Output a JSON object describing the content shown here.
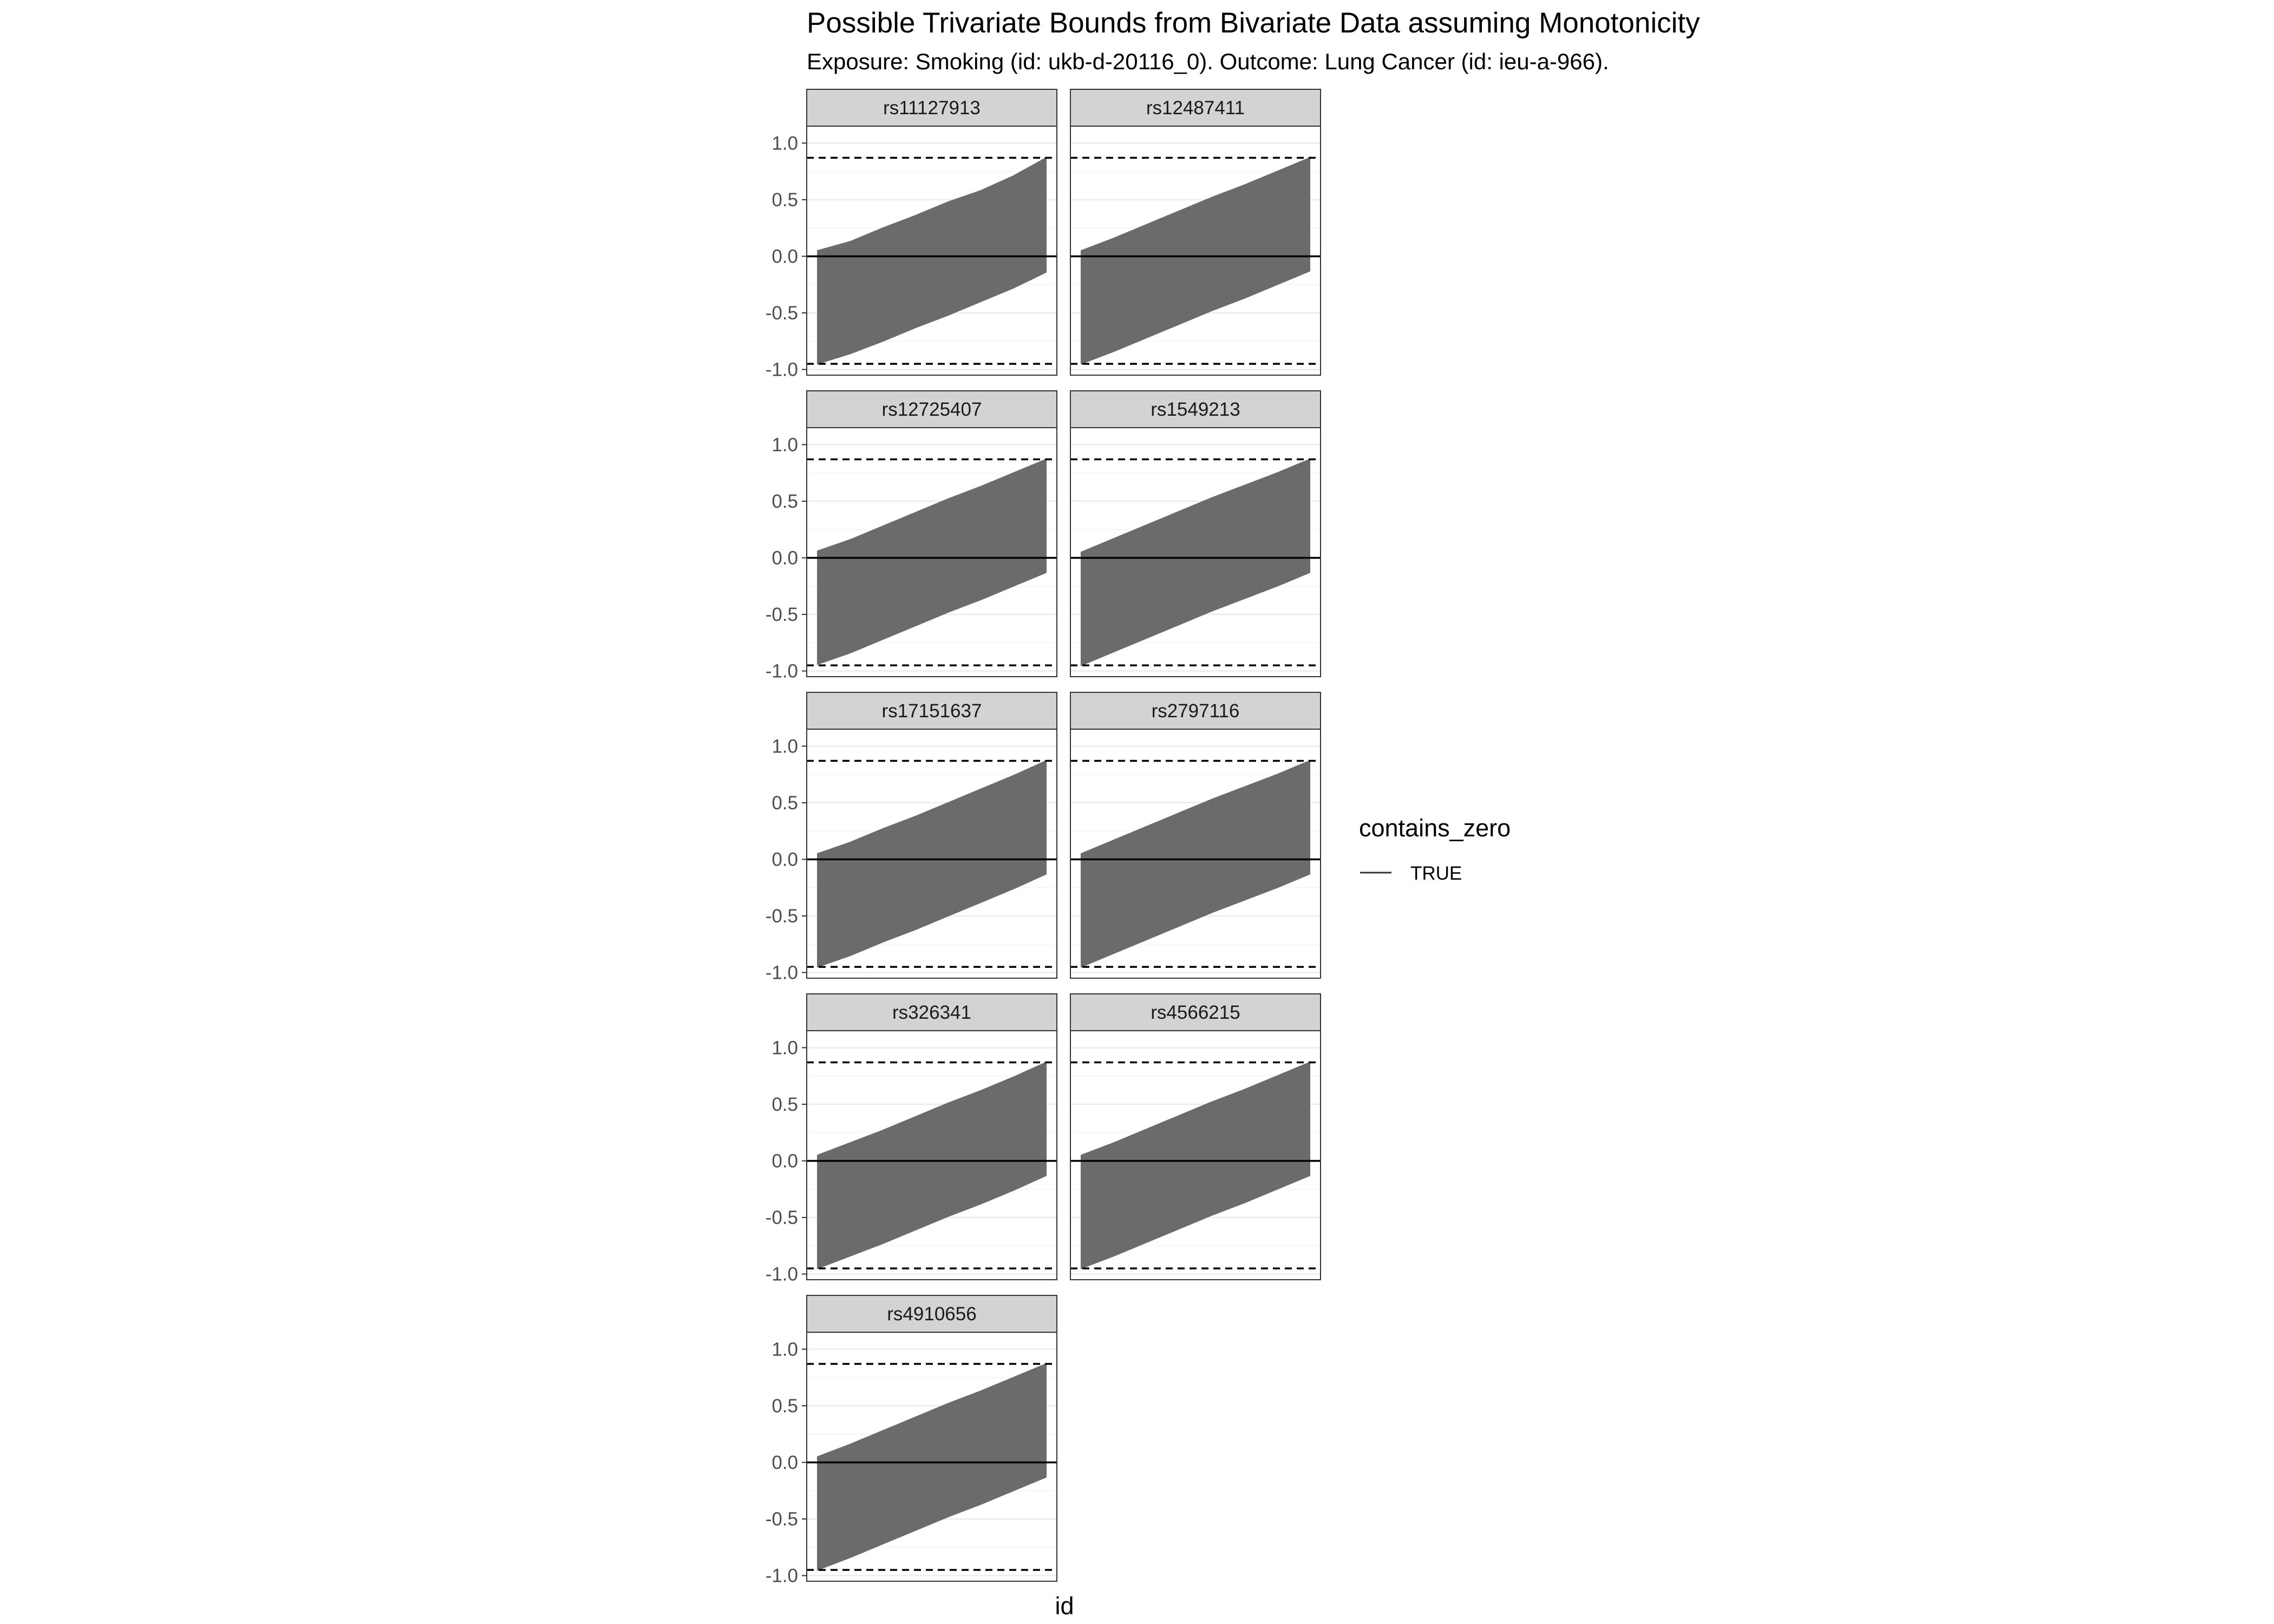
{
  "chart_data": {
    "type": "area",
    "title": "Possible Trivariate Bounds from Bivariate Data assuming Monotonicity",
    "subtitle": "Exposure: Smoking (id: ukb-d-20116_0). Outcome: Lung Cancer (id: ieu-a-966).",
    "xlabel": "id",
    "ylabel": "",
    "ylim": [
      -1.05,
      1.15
    ],
    "y_ticks": [
      "-1.0",
      "-0.5",
      "0.0",
      "0.5",
      "1.0"
    ],
    "y_tick_values": [
      -1.0,
      -0.5,
      0.0,
      0.5,
      1.0
    ],
    "grid": true,
    "reference_lines": {
      "solid": 0.0,
      "dashed": [
        0.87,
        -0.95
      ]
    },
    "legend": {
      "title": "contains_zero",
      "entries": [
        {
          "label": "TRUE",
          "line": "solid"
        }
      ],
      "position": "right"
    },
    "band_color": "#6b6b6b",
    "facets": [
      {
        "name": "rs11127913",
        "lower": [
          -0.95,
          -0.86,
          -0.75,
          -0.63,
          -0.52,
          -0.4,
          -0.28,
          -0.14
        ],
        "upper": [
          0.05,
          0.13,
          0.25,
          0.36,
          0.48,
          0.58,
          0.71,
          0.87
        ]
      },
      {
        "name": "rs12487411",
        "lower": [
          -0.95,
          -0.84,
          -0.72,
          -0.6,
          -0.48,
          -0.37,
          -0.25,
          -0.13
        ],
        "upper": [
          0.05,
          0.16,
          0.28,
          0.4,
          0.52,
          0.63,
          0.75,
          0.87
        ]
      },
      {
        "name": "rs12725407",
        "lower": [
          -0.94,
          -0.84,
          -0.72,
          -0.6,
          -0.48,
          -0.37,
          -0.25,
          -0.13
        ],
        "upper": [
          0.06,
          0.16,
          0.28,
          0.4,
          0.52,
          0.63,
          0.75,
          0.87
        ]
      },
      {
        "name": "rs1549213",
        "lower": [
          -0.95,
          -0.83,
          -0.71,
          -0.59,
          -0.47,
          -0.36,
          -0.25,
          -0.13
        ],
        "upper": [
          0.05,
          0.17,
          0.29,
          0.41,
          0.53,
          0.64,
          0.75,
          0.87
        ]
      },
      {
        "name": "rs17151637",
        "lower": [
          -0.95,
          -0.85,
          -0.73,
          -0.62,
          -0.5,
          -0.38,
          -0.26,
          -0.13
        ],
        "upper": [
          0.05,
          0.15,
          0.27,
          0.38,
          0.5,
          0.62,
          0.74,
          0.87
        ]
      },
      {
        "name": "rs2797116",
        "lower": [
          -0.95,
          -0.83,
          -0.71,
          -0.59,
          -0.47,
          -0.36,
          -0.25,
          -0.13
        ],
        "upper": [
          0.05,
          0.17,
          0.29,
          0.41,
          0.53,
          0.64,
          0.75,
          0.87
        ]
      },
      {
        "name": "rs326341",
        "lower": [
          -0.95,
          -0.84,
          -0.73,
          -0.61,
          -0.49,
          -0.38,
          -0.26,
          -0.13
        ],
        "upper": [
          0.05,
          0.16,
          0.27,
          0.39,
          0.51,
          0.62,
          0.74,
          0.87
        ]
      },
      {
        "name": "rs4566215",
        "lower": [
          -0.95,
          -0.84,
          -0.72,
          -0.6,
          -0.48,
          -0.37,
          -0.25,
          -0.13
        ],
        "upper": [
          0.05,
          0.16,
          0.28,
          0.4,
          0.52,
          0.63,
          0.75,
          0.87
        ]
      },
      {
        "name": "rs4910656",
        "lower": [
          -0.95,
          -0.84,
          -0.72,
          -0.6,
          -0.48,
          -0.37,
          -0.25,
          -0.13
        ],
        "upper": [
          0.05,
          0.16,
          0.28,
          0.4,
          0.52,
          0.63,
          0.75,
          0.87
        ]
      }
    ]
  }
}
